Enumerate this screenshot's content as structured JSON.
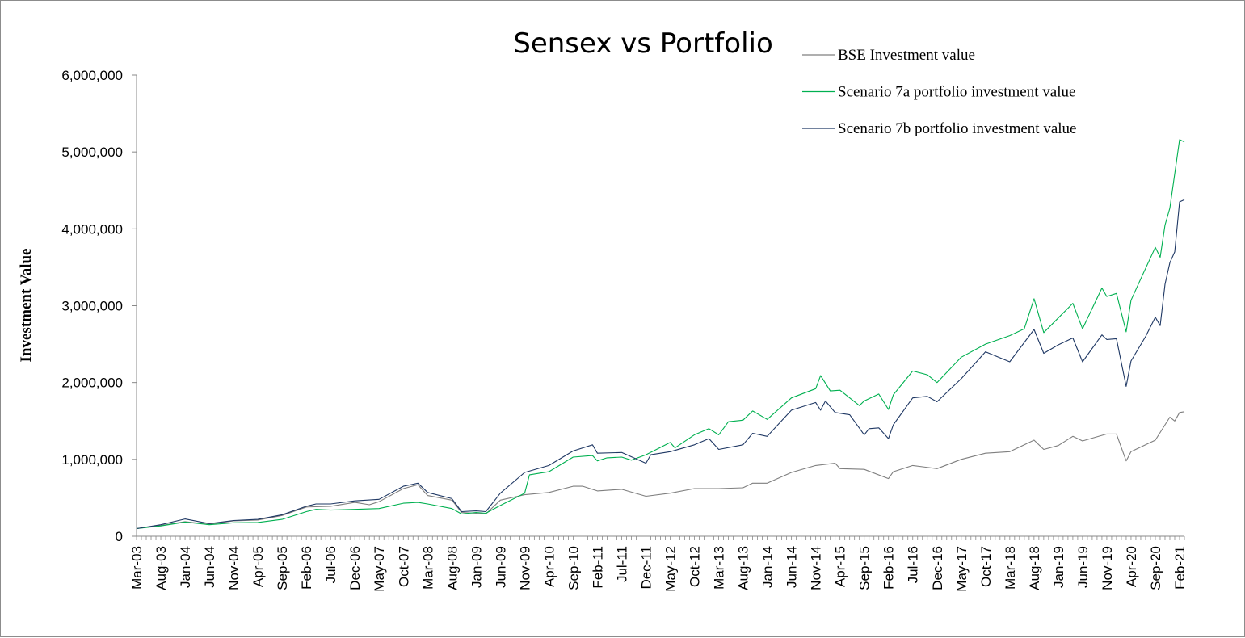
{
  "chart_data": {
    "type": "line",
    "title": "Sensex vs Portfolio",
    "xlabel": "",
    "ylabel": "Investment Value",
    "ylim": [
      0,
      6000000
    ],
    "y_ticks": [
      "0",
      "1,000,000",
      "2,000,000",
      "3,000,000",
      "4,000,000",
      "5,000,000",
      "6,000,000"
    ],
    "x_tick_labels": [
      "Mar-03",
      "Aug-03",
      "Jan-04",
      "Jun-04",
      "Nov-04",
      "Apr-05",
      "Sep-05",
      "Feb-06",
      "Jul-06",
      "Dec-06",
      "May-07",
      "Oct-07",
      "Mar-08",
      "Aug-08",
      "Jan-09",
      "Jun-09",
      "Nov-09",
      "Apr-10",
      "Sep-10",
      "Feb-11",
      "Jul-11",
      "Dec-11",
      "May-12",
      "Oct-12",
      "Mar-13",
      "Aug-13",
      "Jan-14",
      "Jun-14",
      "Nov-14",
      "Apr-15",
      "Sep-15",
      "Feb-16",
      "Jul-16",
      "Dec-16",
      "May-17",
      "Oct-17",
      "Mar-18",
      "Aug-18",
      "Jan-19",
      "Jun-19",
      "Nov-19",
      "Apr-20",
      "Sep-20",
      "Feb-21"
    ],
    "x_start": "Mar-03",
    "x_end": "Mar-21",
    "grid": false,
    "legend_position": "top-right",
    "series": [
      {
        "name": "BSE Investment value",
        "color": "#7f7f7f",
        "points": [
          [
            "Mar-03",
            100000
          ],
          [
            "Aug-03",
            140000
          ],
          [
            "Jan-04",
            190000
          ],
          [
            "Jun-04",
            155000
          ],
          [
            "Nov-04",
            200000
          ],
          [
            "Apr-05",
            210000
          ],
          [
            "Sep-05",
            270000
          ],
          [
            "Feb-06",
            380000
          ],
          [
            "Jul-06",
            390000
          ],
          [
            "Dec-06",
            440000
          ],
          [
            "Mar-07",
            410000
          ],
          [
            "May-07",
            450000
          ],
          [
            "Oct-07",
            620000
          ],
          [
            "Jan-08",
            670000
          ],
          [
            "Mar-08",
            530000
          ],
          [
            "Aug-08",
            470000
          ],
          [
            "Oct-08",
            310000
          ],
          [
            "Jan-09",
            300000
          ],
          [
            "Mar-09",
            290000
          ],
          [
            "Jun-09",
            470000
          ],
          [
            "Nov-09",
            540000
          ],
          [
            "Apr-10",
            570000
          ],
          [
            "Sep-10",
            650000
          ],
          [
            "Nov-10",
            650000
          ],
          [
            "Feb-11",
            590000
          ],
          [
            "Jul-11",
            610000
          ],
          [
            "Dec-11",
            520000
          ],
          [
            "May-12",
            560000
          ],
          [
            "Oct-12",
            620000
          ],
          [
            "Mar-13",
            620000
          ],
          [
            "Aug-13",
            630000
          ],
          [
            "Oct-13",
            690000
          ],
          [
            "Jan-14",
            690000
          ],
          [
            "Jun-14",
            830000
          ],
          [
            "Nov-14",
            920000
          ],
          [
            "Mar-15",
            950000
          ],
          [
            "Apr-15",
            880000
          ],
          [
            "Sep-15",
            870000
          ],
          [
            "Feb-16",
            750000
          ],
          [
            "Mar-16",
            840000
          ],
          [
            "Jul-16",
            920000
          ],
          [
            "Dec-16",
            880000
          ],
          [
            "May-17",
            1000000
          ],
          [
            "Oct-17",
            1080000
          ],
          [
            "Mar-18",
            1100000
          ],
          [
            "Aug-18",
            1250000
          ],
          [
            "Oct-18",
            1130000
          ],
          [
            "Jan-19",
            1180000
          ],
          [
            "Apr-19",
            1300000
          ],
          [
            "Jun-19",
            1240000
          ],
          [
            "Nov-19",
            1330000
          ],
          [
            "Jan-20",
            1330000
          ],
          [
            "Mar-20",
            980000
          ],
          [
            "Apr-20",
            1100000
          ],
          [
            "Sep-20",
            1250000
          ],
          [
            "Dec-20",
            1550000
          ],
          [
            "Jan-21",
            1500000
          ],
          [
            "Feb-21",
            1610000
          ],
          [
            "Mar-21",
            1620000
          ]
        ]
      },
      {
        "name": "Scenario 7a portfolio investment value",
        "color": "#00b050",
        "points": [
          [
            "Mar-03",
            100000
          ],
          [
            "Aug-03",
            135000
          ],
          [
            "Jan-04",
            185000
          ],
          [
            "Jun-04",
            150000
          ],
          [
            "Nov-04",
            175000
          ],
          [
            "Apr-05",
            180000
          ],
          [
            "Sep-05",
            220000
          ],
          [
            "Feb-06",
            320000
          ],
          [
            "Apr-06",
            350000
          ],
          [
            "Jul-06",
            340000
          ],
          [
            "Dec-06",
            350000
          ],
          [
            "May-07",
            360000
          ],
          [
            "Oct-07",
            430000
          ],
          [
            "Jan-08",
            440000
          ],
          [
            "Mar-08",
            420000
          ],
          [
            "Aug-08",
            360000
          ],
          [
            "Oct-08",
            290000
          ],
          [
            "Jan-09",
            310000
          ],
          [
            "Mar-09",
            300000
          ],
          [
            "Jun-09",
            400000
          ],
          [
            "Nov-09",
            560000
          ],
          [
            "Dec-09",
            800000
          ],
          [
            "Apr-10",
            840000
          ],
          [
            "Sep-10",
            1030000
          ],
          [
            "Jan-11",
            1050000
          ],
          [
            "Feb-11",
            980000
          ],
          [
            "Apr-11",
            1020000
          ],
          [
            "Jul-11",
            1030000
          ],
          [
            "Sep-11",
            990000
          ],
          [
            "Dec-11",
            1060000
          ],
          [
            "May-12",
            1220000
          ],
          [
            "Jun-12",
            1150000
          ],
          [
            "Oct-12",
            1320000
          ],
          [
            "Jan-13",
            1400000
          ],
          [
            "Mar-13",
            1320000
          ],
          [
            "May-13",
            1490000
          ],
          [
            "Aug-13",
            1510000
          ],
          [
            "Oct-13",
            1630000
          ],
          [
            "Jan-14",
            1520000
          ],
          [
            "Jun-14",
            1800000
          ],
          [
            "Nov-14",
            1920000
          ],
          [
            "Dec-14",
            2090000
          ],
          [
            "Feb-15",
            1890000
          ],
          [
            "Apr-15",
            1900000
          ],
          [
            "Aug-15",
            1700000
          ],
          [
            "Sep-15",
            1760000
          ],
          [
            "Dec-15",
            1850000
          ],
          [
            "Feb-16",
            1650000
          ],
          [
            "Mar-16",
            1840000
          ],
          [
            "Jul-16",
            2150000
          ],
          [
            "Oct-16",
            2100000
          ],
          [
            "Dec-16",
            2000000
          ],
          [
            "May-17",
            2330000
          ],
          [
            "Oct-17",
            2500000
          ],
          [
            "Mar-18",
            2610000
          ],
          [
            "Jun-18",
            2700000
          ],
          [
            "Aug-18",
            3090000
          ],
          [
            "Oct-18",
            2650000
          ],
          [
            "Jan-19",
            2840000
          ],
          [
            "Apr-19",
            3030000
          ],
          [
            "Jun-19",
            2700000
          ],
          [
            "Oct-19",
            3230000
          ],
          [
            "Nov-19",
            3120000
          ],
          [
            "Jan-20",
            3160000
          ],
          [
            "Mar-20",
            2660000
          ],
          [
            "Apr-20",
            3070000
          ],
          [
            "Jun-20",
            3350000
          ],
          [
            "Sep-20",
            3760000
          ],
          [
            "Oct-20",
            3630000
          ],
          [
            "Nov-20",
            4050000
          ],
          [
            "Dec-20",
            4270000
          ],
          [
            "Feb-21",
            5160000
          ],
          [
            "Mar-21",
            5130000
          ]
        ]
      },
      {
        "name": "Scenario 7b portfolio investment value",
        "color": "#1f3864",
        "points": [
          [
            "Mar-03",
            100000
          ],
          [
            "Aug-03",
            150000
          ],
          [
            "Jan-04",
            225000
          ],
          [
            "Jun-04",
            165000
          ],
          [
            "Nov-04",
            205000
          ],
          [
            "Apr-05",
            220000
          ],
          [
            "Sep-05",
            280000
          ],
          [
            "Feb-06",
            390000
          ],
          [
            "Apr-06",
            420000
          ],
          [
            "Jul-06",
            420000
          ],
          [
            "Dec-06",
            460000
          ],
          [
            "May-07",
            480000
          ],
          [
            "Oct-07",
            650000
          ],
          [
            "Jan-08",
            690000
          ],
          [
            "Mar-08",
            570000
          ],
          [
            "Aug-08",
            490000
          ],
          [
            "Oct-08",
            320000
          ],
          [
            "Jan-09",
            330000
          ],
          [
            "Mar-09",
            320000
          ],
          [
            "Jun-09",
            560000
          ],
          [
            "Nov-09",
            830000
          ],
          [
            "Apr-10",
            920000
          ],
          [
            "Sep-10",
            1110000
          ],
          [
            "Jan-11",
            1190000
          ],
          [
            "Feb-11",
            1080000
          ],
          [
            "Jul-11",
            1090000
          ],
          [
            "Dec-11",
            950000
          ],
          [
            "Jan-12",
            1060000
          ],
          [
            "May-12",
            1100000
          ],
          [
            "Oct-12",
            1190000
          ],
          [
            "Jan-13",
            1270000
          ],
          [
            "Mar-13",
            1130000
          ],
          [
            "Aug-13",
            1190000
          ],
          [
            "Oct-13",
            1340000
          ],
          [
            "Jan-14",
            1300000
          ],
          [
            "Jun-14",
            1640000
          ],
          [
            "Nov-14",
            1740000
          ],
          [
            "Dec-14",
            1640000
          ],
          [
            "Jan-15",
            1760000
          ],
          [
            "Mar-15",
            1610000
          ],
          [
            "Jun-15",
            1580000
          ],
          [
            "Sep-15",
            1320000
          ],
          [
            "Oct-15",
            1400000
          ],
          [
            "Dec-15",
            1410000
          ],
          [
            "Feb-16",
            1270000
          ],
          [
            "Mar-16",
            1450000
          ],
          [
            "Jul-16",
            1800000
          ],
          [
            "Oct-16",
            1820000
          ],
          [
            "Dec-16",
            1750000
          ],
          [
            "May-17",
            2050000
          ],
          [
            "Oct-17",
            2400000
          ],
          [
            "Mar-18",
            2270000
          ],
          [
            "Aug-18",
            2690000
          ],
          [
            "Oct-18",
            2380000
          ],
          [
            "Jan-19",
            2490000
          ],
          [
            "Apr-19",
            2580000
          ],
          [
            "Jun-19",
            2270000
          ],
          [
            "Oct-19",
            2620000
          ],
          [
            "Nov-19",
            2560000
          ],
          [
            "Jan-20",
            2570000
          ],
          [
            "Mar-20",
            1950000
          ],
          [
            "Apr-20",
            2280000
          ],
          [
            "Jul-20",
            2600000
          ],
          [
            "Sep-20",
            2850000
          ],
          [
            "Oct-20",
            2740000
          ],
          [
            "Nov-20",
            3280000
          ],
          [
            "Dec-20",
            3560000
          ],
          [
            "Jan-21",
            3700000
          ],
          [
            "Feb-21",
            4350000
          ],
          [
            "Mar-21",
            4380000
          ]
        ]
      }
    ]
  }
}
